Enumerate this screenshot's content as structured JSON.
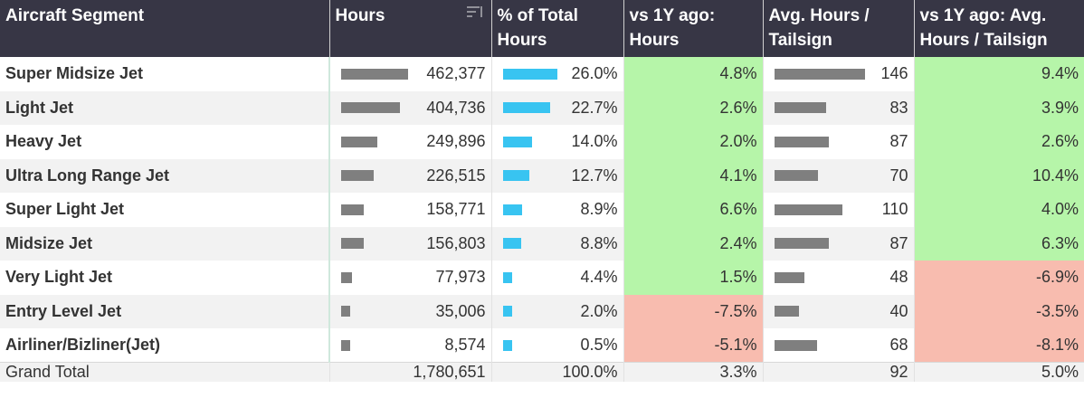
{
  "header": {
    "segment": "Aircraft Segment",
    "hours": "Hours",
    "pct_total": "% of Total Hours",
    "vs_hours": "vs 1Y ago: Hours",
    "avg_hours": "Avg. Hours / Tailsign",
    "vs_avg": "vs 1Y ago: Avg. Hours / Tailsign"
  },
  "sort_icon": "sort-descending-icon",
  "colors": {
    "header_bg": "#373645",
    "hours_bar": "#7f7f7f",
    "pct_bar": "#38c4f1",
    "positive": "#b6f5a9",
    "negative": "#f8bcaf",
    "alt_row": "#f2f2f2"
  },
  "chart_data": {
    "type": "table",
    "columns": [
      "Aircraft Segment",
      "Hours",
      "% of Total Hours",
      "vs 1Y ago: Hours",
      "Avg. Hours / Tailsign",
      "vs 1Y ago: Avg. Hours / Tailsign"
    ],
    "rows": [
      {
        "segment": "Super Midsize Jet",
        "hours": 462377,
        "hours_text": "462,377",
        "pct": 26.0,
        "pct_text": "26.0%",
        "vs_hours": 4.8,
        "vs_hours_text": "4.8%",
        "avg": 146,
        "avg_text": "146",
        "vs_avg": 9.4,
        "vs_avg_text": "9.4%"
      },
      {
        "segment": "Light Jet",
        "hours": 404736,
        "hours_text": "404,736",
        "pct": 22.7,
        "pct_text": "22.7%",
        "vs_hours": 2.6,
        "vs_hours_text": "2.6%",
        "avg": 83,
        "avg_text": "83",
        "vs_avg": 3.9,
        "vs_avg_text": "3.9%"
      },
      {
        "segment": "Heavy Jet",
        "hours": 249896,
        "hours_text": "249,896",
        "pct": 14.0,
        "pct_text": "14.0%",
        "vs_hours": 2.0,
        "vs_hours_text": "2.0%",
        "avg": 87,
        "avg_text": "87",
        "vs_avg": 2.6,
        "vs_avg_text": "2.6%"
      },
      {
        "segment": "Ultra Long Range Jet",
        "hours": 226515,
        "hours_text": "226,515",
        "pct": 12.7,
        "pct_text": "12.7%",
        "vs_hours": 4.1,
        "vs_hours_text": "4.1%",
        "avg": 70,
        "avg_text": "70",
        "vs_avg": 10.4,
        "vs_avg_text": "10.4%"
      },
      {
        "segment": "Super Light Jet",
        "hours": 158771,
        "hours_text": "158,771",
        "pct": 8.9,
        "pct_text": "8.9%",
        "vs_hours": 6.6,
        "vs_hours_text": "6.6%",
        "avg": 110,
        "avg_text": "110",
        "vs_avg": 4.0,
        "vs_avg_text": "4.0%"
      },
      {
        "segment": "Midsize Jet",
        "hours": 156803,
        "hours_text": "156,803",
        "pct": 8.8,
        "pct_text": "8.8%",
        "vs_hours": 2.4,
        "vs_hours_text": "2.4%",
        "avg": 87,
        "avg_text": "87",
        "vs_avg": 6.3,
        "vs_avg_text": "6.3%"
      },
      {
        "segment": "Very Light Jet",
        "hours": 77973,
        "hours_text": "77,973",
        "pct": 4.4,
        "pct_text": "4.4%",
        "vs_hours": 1.5,
        "vs_hours_text": "1.5%",
        "avg": 48,
        "avg_text": "48",
        "vs_avg": -6.9,
        "vs_avg_text": "-6.9%"
      },
      {
        "segment": "Entry Level Jet",
        "hours": 35006,
        "hours_text": "35,006",
        "pct": 2.0,
        "pct_text": "2.0%",
        "vs_hours": -7.5,
        "vs_hours_text": "-7.5%",
        "avg": 40,
        "avg_text": "40",
        "vs_avg": -3.5,
        "vs_avg_text": "-3.5%"
      },
      {
        "segment": "Airliner/Bizliner(Jet)",
        "hours": 8574,
        "hours_text": "8,574",
        "pct": 0.5,
        "pct_text": "0.5%",
        "vs_hours": -5.1,
        "vs_hours_text": "-5.1%",
        "avg": 68,
        "avg_text": "68",
        "vs_avg": -8.1,
        "vs_avg_text": "-8.1%"
      }
    ],
    "total": {
      "segment": "Grand Total",
      "hours_text": "1,780,651",
      "pct_text": "100.0%",
      "vs_hours_text": "3.3%",
      "avg_text": "92",
      "vs_avg_text": "5.0%"
    }
  }
}
